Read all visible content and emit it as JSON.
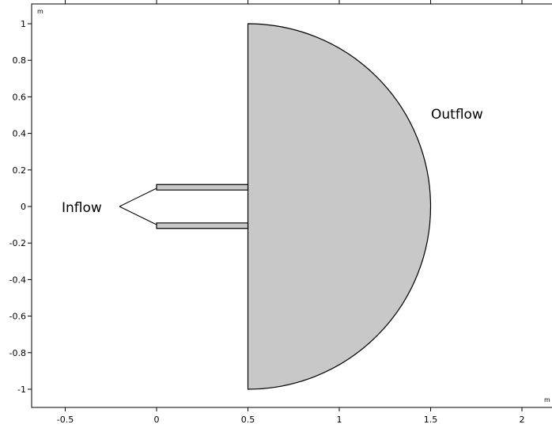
{
  "plot": {
    "x_unit": "m",
    "y_unit": "m",
    "x_ticks": [
      {
        "value": -0.5,
        "label": "-0.5"
      },
      {
        "value": 0,
        "label": "0"
      },
      {
        "value": 0.5,
        "label": "0.5"
      },
      {
        "value": 1,
        "label": "1"
      },
      {
        "value": 1.5,
        "label": "1.5"
      },
      {
        "value": 2,
        "label": "2"
      }
    ],
    "y_ticks": [
      {
        "value": 1,
        "label": "1"
      },
      {
        "value": 0.8,
        "label": "0.8"
      },
      {
        "value": 0.6,
        "label": "0.6"
      },
      {
        "value": 0.4,
        "label": "0.4"
      },
      {
        "value": 0.2,
        "label": "0.2"
      },
      {
        "value": 0,
        "label": "0"
      },
      {
        "value": -0.2,
        "label": "-0.2"
      },
      {
        "value": -0.4,
        "label": "-0.4"
      },
      {
        "value": -0.6,
        "label": "-0.6"
      },
      {
        "value": -0.8,
        "label": "-0.8"
      },
      {
        "value": -1,
        "label": "-1"
      }
    ],
    "geometry_fill": "#c8c8c8",
    "geometry_stroke": "#000000"
  },
  "annotations": {
    "inflow_label": "Inflow",
    "outflow_label": "Outflow"
  }
}
